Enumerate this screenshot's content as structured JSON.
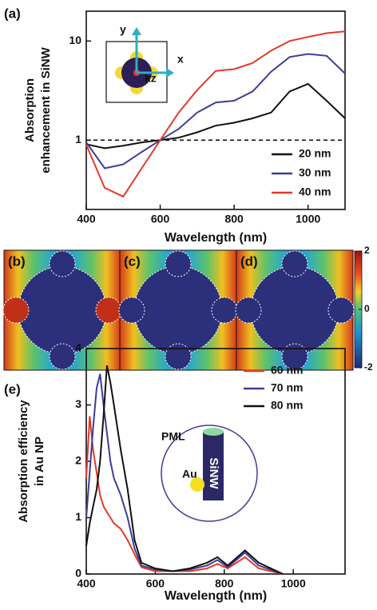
{
  "chart_data": [
    {
      "type": "line",
      "panel_label": "(a)",
      "ylabel": [
        "Absorption",
        "enhancement in SiNW"
      ],
      "xlabel": "Wavelength (nm)",
      "x": [
        400,
        450,
        500,
        550,
        600,
        650,
        700,
        750,
        800,
        850,
        900,
        950,
        1000,
        1050,
        1100
      ],
      "series": [
        {
          "name": "20 nm",
          "color": "#111111",
          "values": [
            0.91,
            0.83,
            0.88,
            0.95,
            1.0,
            1.06,
            1.2,
            1.4,
            1.5,
            1.66,
            1.9,
            3.1,
            3.7,
            2.5,
            1.66
          ]
        },
        {
          "name": "30 nm",
          "color": "#3d3d99",
          "values": [
            0.95,
            0.52,
            0.57,
            0.76,
            1.0,
            1.3,
            1.9,
            2.4,
            2.5,
            3.1,
            4.9,
            6.9,
            7.4,
            7.1,
            4.7
          ]
        },
        {
          "name": "40 nm",
          "color": "#e5382a",
          "values": [
            0.9,
            0.33,
            0.27,
            0.52,
            1.0,
            1.9,
            3.2,
            5.0,
            5.2,
            6.0,
            8.0,
            10,
            11,
            12,
            12.5
          ]
        }
      ],
      "xlim": [
        400,
        1100
      ],
      "xticks": [
        400,
        600,
        800,
        1000
      ],
      "ylim": [
        0.2,
        20
      ],
      "yticks": [
        1,
        10
      ],
      "log_y": true,
      "reference_line": 1,
      "inset_labels": [
        "y",
        "x",
        "kz"
      ]
    },
    {
      "type": "field-map",
      "panel_labels": [
        "(b)",
        "(c)",
        "(d)"
      ],
      "colorbar": {
        "lim": [
          -2,
          2
        ],
        "ticks": [
          2,
          0,
          -2
        ]
      }
    },
    {
      "type": "line",
      "panel_label": "(e)",
      "ylabel": [
        "Absorption efficiency",
        "in Au NP"
      ],
      "xlabel": "Wavelength (nm)",
      "x": [
        400,
        410,
        420,
        430,
        440,
        450,
        460,
        470,
        480,
        500,
        520,
        540,
        560,
        600,
        650,
        700,
        750,
        780,
        810,
        860,
        900,
        970
      ],
      "series": [
        {
          "name": "60 nm",
          "color": "#e5382a",
          "values": [
            1.7,
            2.8,
            2.2,
            1.8,
            1.4,
            1.2,
            1.1,
            1.0,
            0.9,
            0.8,
            0.6,
            0.35,
            0.12,
            0.05,
            0.05,
            0.05,
            0.1,
            0.18,
            0.1,
            0.3,
            0.1,
            0
          ]
        },
        {
          "name": "70 nm",
          "color": "#3d3d99",
          "values": [
            1.0,
            1.8,
            2.6,
            3.3,
            3.55,
            3.0,
            2.5,
            2.0,
            1.7,
            1.4,
            1.0,
            0.45,
            0.15,
            0.08,
            0.05,
            0.08,
            0.15,
            0.25,
            0.12,
            0.38,
            0.15,
            0
          ]
        },
        {
          "name": "80 nm",
          "color": "#111111",
          "values": [
            0.5,
            0.9,
            1.2,
            1.5,
            2.0,
            2.8,
            3.7,
            3.4,
            3.0,
            2.2,
            1.5,
            0.6,
            0.2,
            0.1,
            0.05,
            0.1,
            0.2,
            0.3,
            0.15,
            0.42,
            0.2,
            0
          ]
        }
      ],
      "xlim": [
        400,
        1150
      ],
      "xticks": [
        400,
        600,
        800,
        1000
      ],
      "ylim": [
        0,
        4
      ],
      "yticks": [
        0,
        1,
        2,
        3,
        4
      ],
      "log_y": false,
      "inset_labels": [
        "PML",
        "Au",
        "SiNW"
      ]
    }
  ]
}
